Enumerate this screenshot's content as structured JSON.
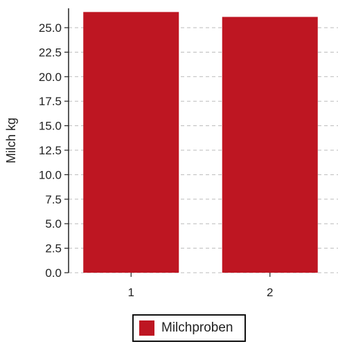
{
  "chart_data": {
    "type": "bar",
    "categories": [
      "1",
      "2"
    ],
    "series": [
      {
        "name": "Milchproben",
        "values": [
          26.6,
          26.1
        ],
        "color": "#be1622"
      }
    ],
    "ylabel": "Milch kg",
    "xlabel": "",
    "ylim": [
      0,
      27
    ],
    "yticks": [
      0.0,
      2.5,
      5.0,
      7.5,
      10.0,
      12.5,
      15.0,
      17.5,
      20.0,
      22.5,
      25.0
    ],
    "ytick_labels": [
      "0.0",
      "2.5",
      "5.0",
      "7.5",
      "10.0",
      "12.5",
      "15.0",
      "17.5",
      "20.0",
      "22.5",
      "25.0"
    ],
    "grid": true,
    "legend_position": "bottom-center"
  }
}
